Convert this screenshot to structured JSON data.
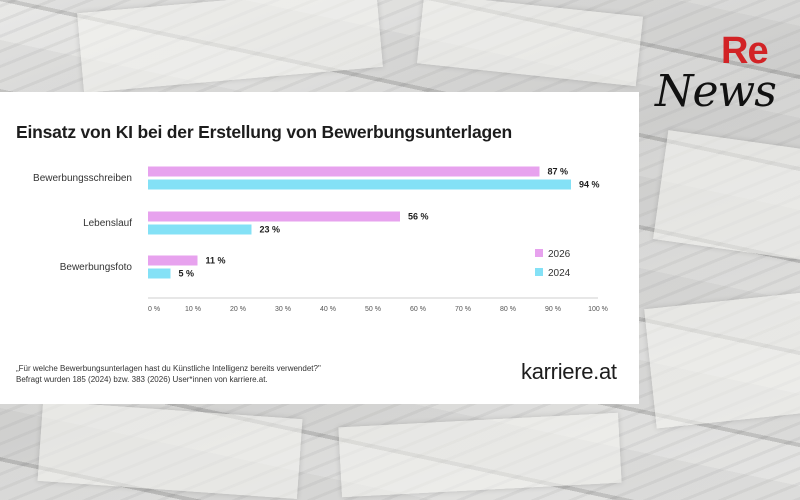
{
  "title": "Einsatz von KI bei der Erstellung von Bewerbungsunterlagen",
  "footnote": {
    "question": "„Für welche Bewerbungsunterlagen hast du Künstliche Intelligenz bereits verwendet?\"",
    "sample": "Befragt wurden 185 (2024) bzw. 383 (2026) User*innen von karriere.at."
  },
  "brand": "karriere.at",
  "logo": {
    "top": "Re",
    "bottom": "News"
  },
  "colors": {
    "series_2026": "#e7a2ee",
    "series_2024": "#84e1f6"
  },
  "chart_data": {
    "type": "bar",
    "orientation": "horizontal",
    "categories": [
      "Bewerbungsschreiben",
      "Lebenslauf",
      "Bewerbungsfoto"
    ],
    "series": [
      {
        "name": "2026",
        "values": [
          87,
          56,
          11
        ],
        "labels": [
          "87 %",
          "56 %",
          "11 %"
        ]
      },
      {
        "name": "2024",
        "values": [
          94,
          23,
          5
        ],
        "labels": [
          "94 %",
          "23 %",
          "5 %"
        ]
      }
    ],
    "xlim": [
      0,
      100
    ],
    "xticks": [
      0,
      10,
      20,
      30,
      40,
      50,
      60,
      70,
      80,
      90,
      100
    ],
    "xtick_labels": [
      "0 %",
      "10 %",
      "20 %",
      "30 %",
      "40 %",
      "50 %",
      "60 %",
      "70 %",
      "80 %",
      "90 %",
      "100 %"
    ],
    "legend": [
      "2026",
      "2024"
    ],
    "legend_position": "right",
    "grid": false
  }
}
